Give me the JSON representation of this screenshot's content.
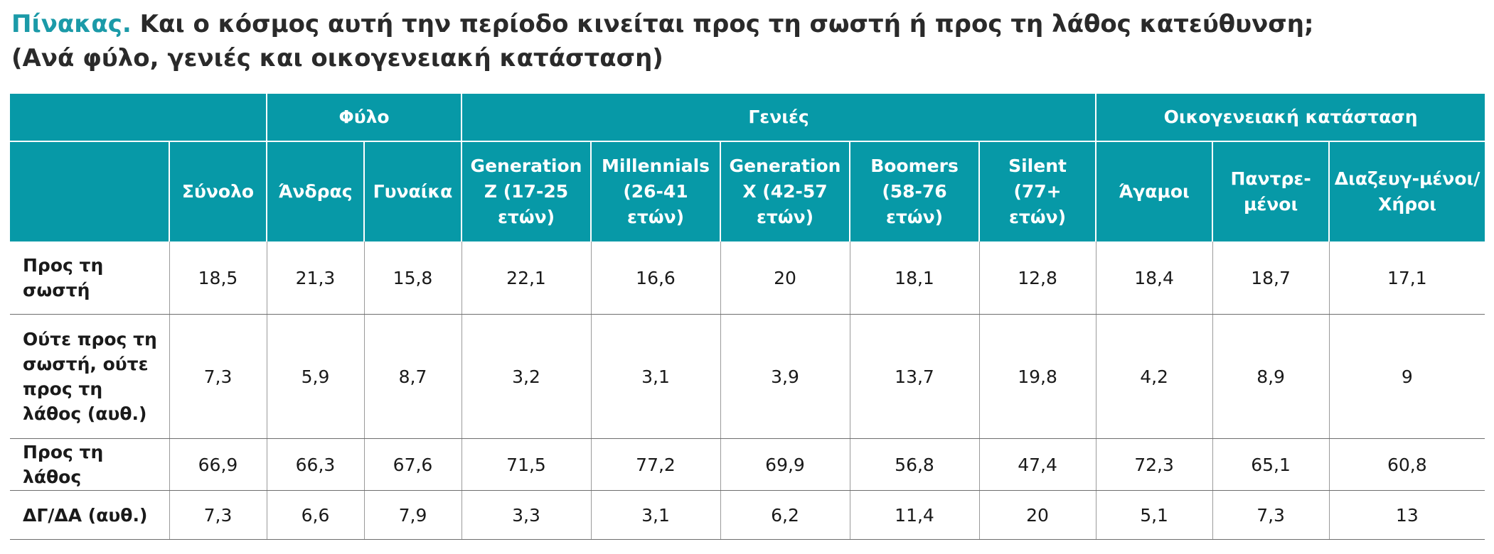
{
  "title": {
    "prefix": "Πίνακας.",
    "line1": "Και ο κόσμος αυτή την περίοδο κινείται προς τη σωστή ή προς τη λάθος κατεύθυνση;",
    "line2": "(Ανά φύλο, γενιές και οικογενειακή κατάσταση)"
  },
  "table": {
    "groups": {
      "gender": "Φύλο",
      "generations": "Γενιές",
      "marital": "Οικογενειακή κατάσταση"
    },
    "columns": [
      "Σύνολο",
      "Άνδρας",
      "Γυναίκα",
      "Generation Z (17-25 ετών)",
      "Millennials (26-41 ετών)",
      "Generation X (42-57 ετών)",
      "Boomers (58-76 ετών)",
      "Silent (77+ ετών)",
      "Άγαμοι",
      "Παντρε-μένοι",
      "Διαζευγ-μένοι/ Χήροι"
    ],
    "rows": [
      {
        "label": "Προς τη σωστή",
        "values": [
          "18,5",
          "21,3",
          "15,8",
          "22,1",
          "16,6",
          "20",
          "18,1",
          "12,8",
          "18,4",
          "18,7",
          "17,1"
        ]
      },
      {
        "label": "Ούτε προς τη σωστή, ούτε προς τη λάθος (αυθ.)",
        "values": [
          "7,3",
          "5,9",
          "8,7",
          "3,2",
          "3,1",
          "3,9",
          "13,7",
          "19,8",
          "4,2",
          "8,9",
          "9"
        ]
      },
      {
        "label": "Προς τη λάθος",
        "values": [
          "66,9",
          "66,3",
          "67,6",
          "71,5",
          "77,2",
          "69,9",
          "56,8",
          "47,4",
          "72,3",
          "65,1",
          "60,8"
        ]
      },
      {
        "label": "ΔΓ/ΔΑ (αυθ.)",
        "values": [
          "7,3",
          "6,6",
          "7,9",
          "3,3",
          "3,1",
          "6,2",
          "11,4",
          "20",
          "5,1",
          "7,3",
          "13"
        ]
      }
    ]
  }
}
